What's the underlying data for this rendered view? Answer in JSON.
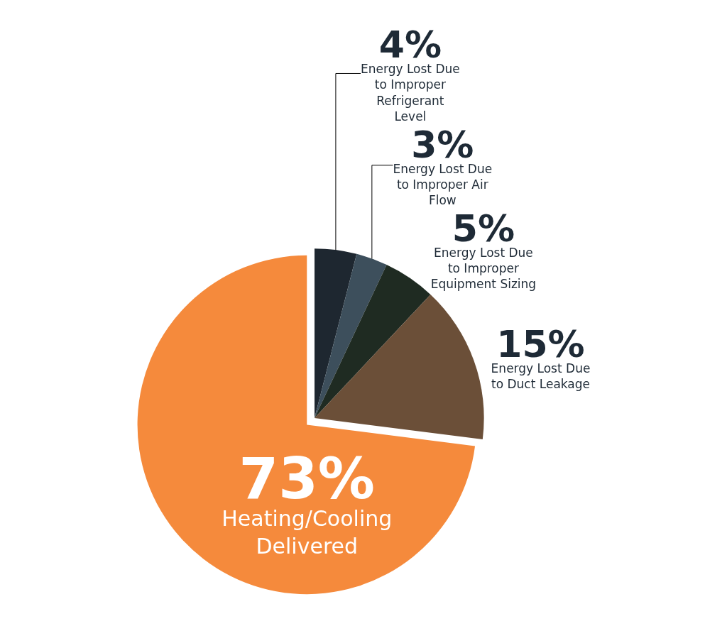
{
  "chart_data": {
    "type": "pie",
    "categories": [
      "Energy Lost Due to Improper Refrigerant Level",
      "Energy Lost Due to Improper Air Flow",
      "Energy Lost Due to Improper Equipment Sizing",
      "Energy Lost Due to Duct Leakage",
      "Heating/Cooling Delivered"
    ],
    "values": [
      4,
      3,
      5,
      15,
      73
    ],
    "value_labels": [
      "4%",
      "3%",
      "5%",
      "15%",
      "73%"
    ],
    "colors": [
      "#1e2730",
      "#3d4f5c",
      "#1f2b22",
      "#6b4f38",
      "#f58a3c"
    ],
    "legend": false
  }
}
